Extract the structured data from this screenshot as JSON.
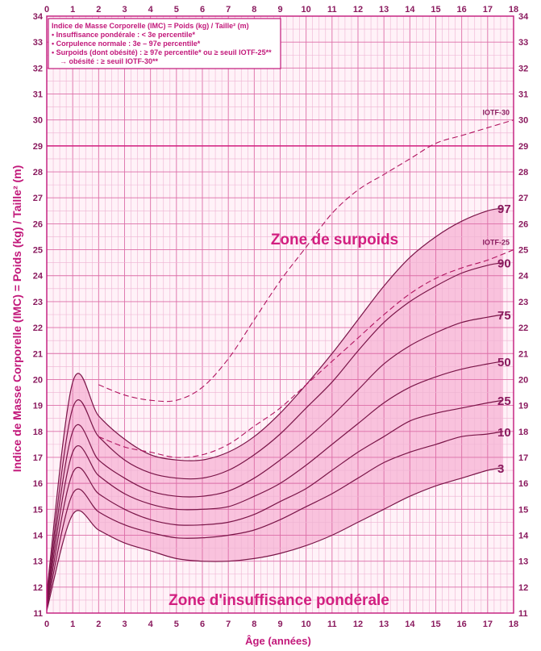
{
  "chart_data": {
    "type": "line",
    "ylabel": "Indice de Masse Corporelle (IMC) = Poids (kg) / Taille² (m)",
    "xlabel": "Âge (années)",
    "xlim": [
      0,
      18
    ],
    "ylim": [
      11,
      34
    ],
    "x_ticks": [
      "0",
      "1",
      "2",
      "3",
      "4",
      "5",
      "6",
      "7",
      "8",
      "9",
      "10",
      "11",
      "12",
      "13",
      "14",
      "15",
      "16",
      "17",
      "18"
    ],
    "y_ticks": [
      "11",
      "12",
      "13",
      "14",
      "15",
      "16",
      "17",
      "18",
      "19",
      "20",
      "21",
      "22",
      "23",
      "24",
      "25",
      "26",
      "27",
      "28",
      "29",
      "30",
      "31",
      "32",
      "33",
      "34"
    ],
    "grid": true,
    "legend": {
      "position": "top-left",
      "lines": [
        "Indice de Masse Corporelle (IMC) = Poids (kg) / Taille² (m)",
        "• Insuffisance pondérale : < 3e percentile*",
        "• Corpulence normale : 3e – 97e percentile*",
        "• Surpoids (dont obésité) : ≥ 97e percentile* ou ≥ seuil IOTF-25**",
        "→ obésité : ≥ seuil IOTF-30**"
      ]
    },
    "annotations": {
      "zone_top": "Zone de surpoids",
      "zone_bottom": "Zone d'insuffisance pondérale"
    },
    "reference_line": {
      "y": 29
    },
    "x": [
      0,
      1,
      2,
      3,
      4,
      5,
      6,
      7,
      8,
      9,
      10,
      11,
      12,
      13,
      14,
      15,
      16,
      17,
      17.6
    ],
    "series": [
      {
        "name": "97",
        "style": "solid",
        "values": [
          11.8,
          19.9,
          18.6,
          17.7,
          17.1,
          16.9,
          16.9,
          17.2,
          17.8,
          18.7,
          19.8,
          21.0,
          22.3,
          23.6,
          24.7,
          25.5,
          26.1,
          26.5,
          26.6
        ]
      },
      {
        "name": "90",
        "style": "solid",
        "values": [
          11.6,
          18.9,
          17.8,
          16.9,
          16.4,
          16.2,
          16.2,
          16.5,
          17.1,
          17.9,
          18.9,
          19.9,
          21.1,
          22.2,
          23.0,
          23.6,
          24.1,
          24.4,
          24.5
        ]
      },
      {
        "name": "75",
        "style": "solid",
        "values": [
          11.5,
          18.0,
          16.9,
          16.2,
          15.7,
          15.5,
          15.5,
          15.7,
          16.2,
          16.9,
          17.7,
          18.6,
          19.6,
          20.6,
          21.3,
          21.8,
          22.2,
          22.4,
          22.5
        ]
      },
      {
        "name": "50",
        "style": "solid",
        "values": [
          11.4,
          17.2,
          16.3,
          15.6,
          15.2,
          15.0,
          15.0,
          15.1,
          15.5,
          16.0,
          16.7,
          17.5,
          18.3,
          19.1,
          19.7,
          20.1,
          20.4,
          20.6,
          20.7
        ]
      },
      {
        "name": "25",
        "style": "solid",
        "values": [
          11.3,
          16.4,
          15.6,
          15.0,
          14.6,
          14.4,
          14.4,
          14.5,
          14.8,
          15.3,
          15.8,
          16.5,
          17.2,
          17.8,
          18.4,
          18.7,
          18.9,
          19.1,
          19.2
        ]
      },
      {
        "name": "10",
        "style": "solid",
        "values": [
          11.2,
          15.6,
          14.9,
          14.4,
          14.1,
          13.9,
          13.9,
          14.0,
          14.2,
          14.6,
          15.1,
          15.6,
          16.2,
          16.8,
          17.2,
          17.5,
          17.8,
          17.9,
          18.0
        ]
      },
      {
        "name": "3",
        "style": "solid",
        "values": [
          11.1,
          14.8,
          14.2,
          13.7,
          13.4,
          13.1,
          13.0,
          13.0,
          13.1,
          13.3,
          13.6,
          14.0,
          14.5,
          15.0,
          15.5,
          15.9,
          16.2,
          16.5,
          16.6
        ]
      },
      {
        "name": "IOTF-30",
        "style": "dashed",
        "x": [
          2,
          3,
          4,
          5,
          6,
          7,
          8,
          9,
          10,
          11,
          12,
          13,
          14,
          15,
          16,
          17,
          18
        ],
        "values": [
          19.8,
          19.4,
          19.2,
          19.2,
          19.7,
          20.8,
          22.3,
          23.8,
          25.1,
          26.4,
          27.3,
          27.9,
          28.5,
          29.1,
          29.4,
          29.7,
          30.0
        ]
      },
      {
        "name": "IOTF-25",
        "style": "dashed",
        "x": [
          2,
          3,
          4,
          5,
          6,
          7,
          8,
          9,
          10,
          11,
          12,
          13,
          14,
          15,
          16,
          17,
          18
        ],
        "values": [
          17.8,
          17.4,
          17.2,
          17.0,
          17.1,
          17.5,
          18.2,
          18.9,
          19.8,
          20.7,
          21.6,
          22.5,
          23.3,
          23.9,
          24.3,
          24.6,
          25.0
        ]
      }
    ]
  }
}
